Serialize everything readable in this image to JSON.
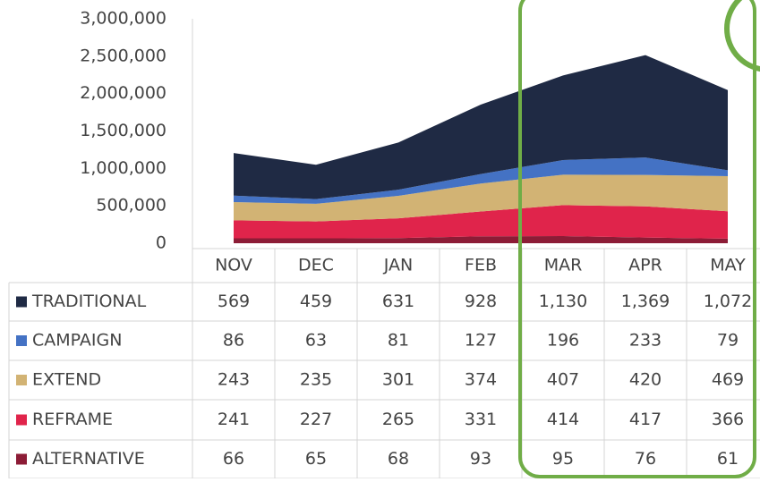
{
  "chart_data": {
    "type": "stacked_area",
    "categories": [
      "NOV",
      "DEC",
      "JAN",
      "FEB",
      "MAR",
      "APR",
      "MAY"
    ],
    "series": [
      {
        "name": "TRADITIONAL",
        "color": "#1f2a44",
        "values": [
          569000,
          459000,
          631000,
          928000,
          1130000,
          1369000,
          1072000
        ],
        "value_labels": [
          "569",
          "459",
          "631",
          "928",
          "1,130",
          "1,369",
          "1,072"
        ]
      },
      {
        "name": "CAMPAIGN",
        "color": "#4472c4",
        "values": [
          86000,
          63000,
          81000,
          127000,
          196000,
          233000,
          79000
        ],
        "value_labels": [
          "86",
          "63",
          "81",
          "127",
          "196",
          "233",
          "79"
        ]
      },
      {
        "name": "EXTEND",
        "color": "#d2b374",
        "values": [
          243000,
          235000,
          301000,
          374000,
          407000,
          420000,
          469000
        ],
        "value_labels": [
          "243",
          "235",
          "301",
          "374",
          "407",
          "420",
          "469"
        ]
      },
      {
        "name": "REFRAME",
        "color": "#e0244b",
        "values": [
          241000,
          227000,
          265000,
          331000,
          414000,
          417000,
          366000
        ],
        "value_labels": [
          "241",
          "227",
          "265",
          "331",
          "414",
          "417",
          "366"
        ]
      },
      {
        "name": "ALTERNATIVE",
        "color": "#8c1c36",
        "values": [
          66000,
          65000,
          68000,
          93000,
          95000,
          76000,
          61000
        ],
        "value_labels": [
          "66",
          "65",
          "68",
          "93",
          "95",
          "76",
          "61"
        ]
      }
    ],
    "ylim": [
      0,
      3000000
    ],
    "yticks": [
      0,
      {
        "value": 500000,
        "label": "500,000"
      },
      {
        "value": 1000000,
        "label": "1,000,000"
      },
      {
        "value": 1500000,
        "label": "1,500,000"
      },
      {
        "value": 2000000,
        "label": "2,000,000"
      },
      {
        "value": 2500000,
        "label": "2,500,000"
      },
      {
        "value": 3000000,
        "label": "3,000,000"
      }
    ]
  }
}
